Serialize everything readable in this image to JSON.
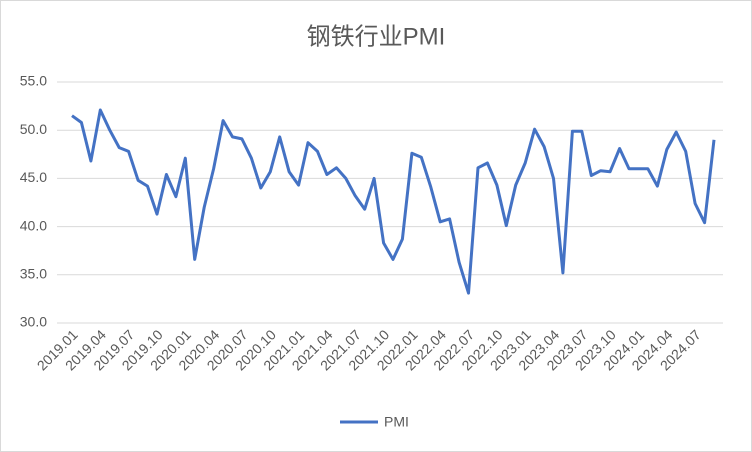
{
  "chart_data": {
    "type": "line",
    "title": "钢铁行业PMI",
    "categories": [
      "2019.01",
      null,
      null,
      "2019.04",
      null,
      null,
      "2019.07",
      null,
      null,
      "2019.10",
      null,
      null,
      "2020.01",
      null,
      null,
      "2020.04",
      null,
      null,
      "2020.07",
      null,
      null,
      "2020.10",
      null,
      null,
      "2021.01",
      null,
      null,
      "2021.04",
      null,
      null,
      "2021.07",
      null,
      null,
      "2021.10",
      null,
      null,
      "2022.01",
      null,
      null,
      "2022.04",
      null,
      null,
      "2022.07",
      null,
      null,
      "2022.10",
      null,
      null,
      "2023.01",
      null,
      null,
      "2023.04",
      null,
      null,
      "2023.07",
      null,
      null,
      "2023.10",
      null,
      null,
      "2024.01",
      null,
      null,
      "2024.04",
      null,
      null,
      "2024.07",
      null,
      null
    ],
    "series": [
      {
        "name": "PMI",
        "color": "#4472c4",
        "values": [
          51.5,
          50.8,
          46.8,
          52.1,
          50.0,
          48.2,
          47.8,
          44.8,
          44.2,
          41.3,
          45.4,
          43.1,
          47.1,
          36.6,
          42.0,
          46.0,
          51.0,
          49.3,
          49.1,
          47.1,
          44.0,
          45.7,
          49.3,
          45.7,
          44.3,
          48.7,
          47.8,
          45.4,
          46.1,
          45.0,
          43.2,
          41.8,
          45.0,
          38.3,
          36.6,
          38.7,
          47.6,
          47.2,
          44.1,
          40.5,
          40.8,
          36.3,
          33.1,
          46.1,
          46.6,
          44.3,
          40.1,
          44.3,
          46.6,
          50.1,
          48.3,
          45.0,
          35.2,
          49.9,
          49.9,
          45.3,
          45.8,
          45.7,
          48.1,
          46.0,
          46.0,
          46.0,
          44.2,
          48.0,
          49.8,
          47.8,
          42.4,
          40.4,
          49.0
        ]
      }
    ],
    "ylim": [
      30,
      55
    ],
    "yticks": [
      {
        "value": 30,
        "label": "30.0"
      },
      {
        "value": 35,
        "label": "35.0"
      },
      {
        "value": 40,
        "label": "40.0"
      },
      {
        "value": 45,
        "label": "45.0"
      },
      {
        "value": 50,
        "label": "50.0"
      },
      {
        "value": 55,
        "label": "55.0"
      }
    ],
    "grid": true,
    "legend": "bottom"
  }
}
